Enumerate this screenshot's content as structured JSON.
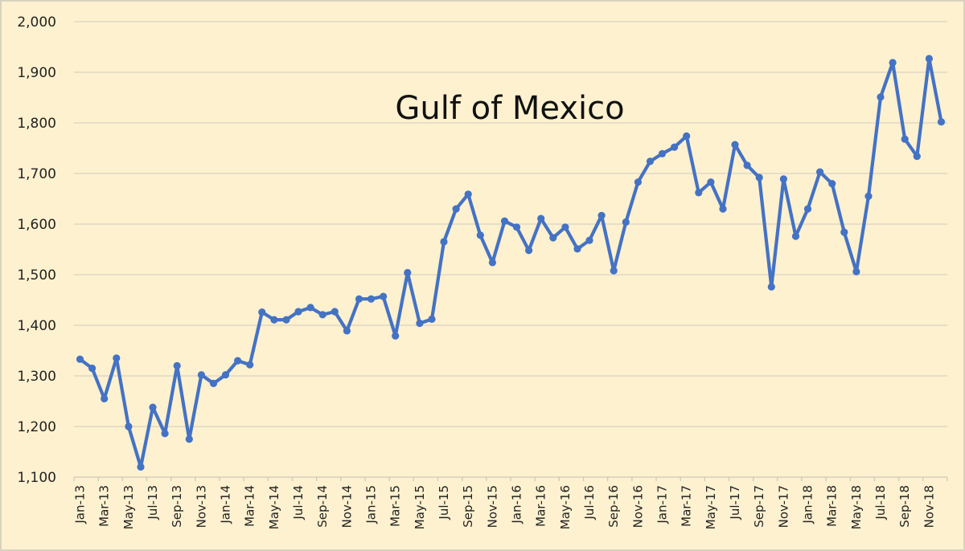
{
  "chart_data": {
    "type": "line",
    "title": "Gulf of Mexico",
    "xlabel": "",
    "ylabel": "",
    "ylim": [
      1100,
      2000
    ],
    "yticks": [
      1100,
      1200,
      1300,
      1400,
      1500,
      1600,
      1700,
      1800,
      1900,
      2000
    ],
    "ytick_labels": [
      "1,100",
      "1,200",
      "1,300",
      "1,400",
      "1,500",
      "1,600",
      "1,700",
      "1,800",
      "1,900",
      "2,000"
    ],
    "grid": true,
    "legend": null,
    "x_tick_labels": [
      "Jan-13",
      "Mar-13",
      "May-13",
      "Jul-13",
      "Sep-13",
      "Nov-13",
      "Jan-14",
      "Mar-14",
      "May-14",
      "Jul-14",
      "Sep-14",
      "Nov-14",
      "Jan-15",
      "Mar-15",
      "May-15",
      "Jul-15",
      "Sep-15",
      "Nov-15",
      "Jan-16",
      "Mar-16",
      "May-16",
      "Jul-16",
      "Sep-16",
      "Nov-16",
      "Jan-17",
      "Mar-17",
      "May-17",
      "Jul-17",
      "Sep-17",
      "Nov-17",
      "Jan-18",
      "Mar-18",
      "May-18",
      "Jul-18",
      "Sep-18",
      "Nov-18"
    ],
    "x": [
      "Jan-13",
      "Feb-13",
      "Mar-13",
      "Apr-13",
      "May-13",
      "Jun-13",
      "Jul-13",
      "Aug-13",
      "Sep-13",
      "Oct-13",
      "Nov-13",
      "Dec-13",
      "Jan-14",
      "Feb-14",
      "Mar-14",
      "Apr-14",
      "May-14",
      "Jun-14",
      "Jul-14",
      "Aug-14",
      "Sep-14",
      "Oct-14",
      "Nov-14",
      "Dec-14",
      "Jan-15",
      "Feb-15",
      "Mar-15",
      "Apr-15",
      "May-15",
      "Jun-15",
      "Jul-15",
      "Aug-15",
      "Sep-15",
      "Oct-15",
      "Nov-15",
      "Dec-15",
      "Jan-16",
      "Feb-16",
      "Mar-16",
      "Apr-16",
      "May-16",
      "Jun-16",
      "Jul-16",
      "Aug-16",
      "Sep-16",
      "Oct-16",
      "Nov-16",
      "Dec-16",
      "Jan-17",
      "Feb-17",
      "Mar-17",
      "Apr-17",
      "May-17",
      "Jun-17",
      "Jul-17",
      "Aug-17",
      "Sep-17",
      "Oct-17",
      "Nov-17",
      "Dec-17",
      "Jan-18",
      "Feb-18",
      "Mar-18",
      "Apr-18",
      "May-18",
      "Jun-18",
      "Jul-18",
      "Aug-18",
      "Sep-18",
      "Oct-18",
      "Nov-18",
      "Dec-18"
    ],
    "series": [
      {
        "name": "Gulf of Mexico",
        "color": "#4472c4",
        "values": [
          1333,
          1315,
          1255,
          1335,
          1200,
          1120,
          1238,
          1186,
          1320,
          1175,
          1302,
          1285,
          1302,
          1330,
          1322,
          1426,
          1411,
          1411,
          1427,
          1435,
          1421,
          1427,
          1389,
          1452,
          1452,
          1457,
          1379,
          1504,
          1404,
          1412,
          1565,
          1630,
          1659,
          1578,
          1524,
          1606,
          1594,
          1548,
          1611,
          1573,
          1594,
          1551,
          1568,
          1617,
          1508,
          1604,
          1683,
          1724,
          1739,
          1752,
          1774,
          1662,
          1683,
          1630,
          1757,
          1716,
          1692,
          1476,
          1689,
          1576,
          1630,
          1703,
          1680,
          1584,
          1506,
          1655,
          1851,
          1919,
          1768,
          1734,
          1927,
          1802
        ]
      }
    ]
  },
  "colors": {
    "background": "#fdf1cf",
    "gridline": "#d9d4c4",
    "line": "#4472c4",
    "text": "#222222"
  }
}
